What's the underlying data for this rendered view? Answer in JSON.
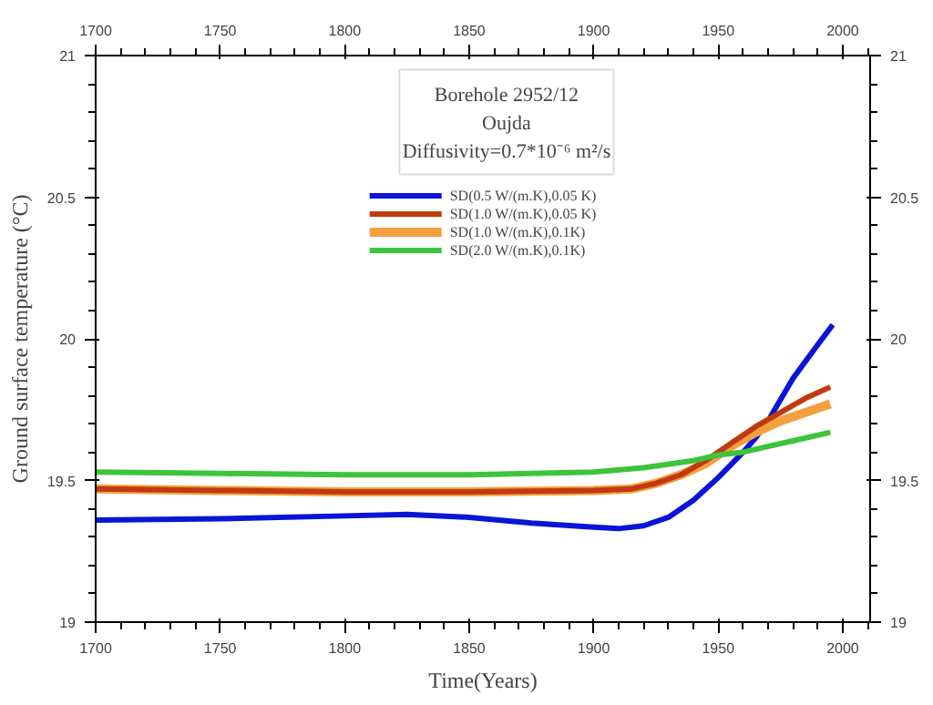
{
  "chart_data": {
    "type": "line",
    "xlabel": "Time(Years)",
    "ylabel": "Ground surface temperature (°C)",
    "annotations": [
      "Borehole 2952/12",
      "Oujda",
      "Diffusivity=0.7*10⁻⁶ m²/s"
    ],
    "xlim": [
      1700,
      2011
    ],
    "xticks": [
      1700,
      1750,
      1800,
      1850,
      1900,
      1950,
      2000
    ],
    "x2lim": [
      1700,
      2011
    ],
    "x2ticks": [
      1700,
      1750,
      1800,
      1850,
      1900,
      1950,
      2000
    ],
    "ylim": [
      19,
      21
    ],
    "yticks": [
      19,
      19.5,
      20,
      20.5,
      21
    ],
    "y2lim": [
      19,
      21
    ],
    "y2ticks": [
      19,
      19.5,
      20,
      20.5,
      21
    ],
    "grid": false,
    "legend": "top",
    "marker": "none",
    "line_style": "solid",
    "series": [
      {
        "name": "SD(0.5 W/(m.K),0.05 K)",
        "color": "#0a14d8",
        "x": [
          1700,
          1750,
          1800,
          1825,
          1850,
          1875,
          1900,
          1910,
          1920,
          1930,
          1940,
          1950,
          1960,
          1965,
          1970,
          1980,
          1990,
          1996
        ],
        "values": [
          19.36,
          19.365,
          19.375,
          19.38,
          19.37,
          19.35,
          19.335,
          19.33,
          19.34,
          19.37,
          19.43,
          19.51,
          19.6,
          19.65,
          19.71,
          19.86,
          19.98,
          20.05
        ]
      },
      {
        "name": "SD(1.0 W/(m.K),0.05 K)",
        "color": "#c03a10",
        "x": [
          1700,
          1750,
          1800,
          1850,
          1900,
          1915,
          1925,
          1935,
          1945,
          1955,
          1965,
          1975,
          1985,
          1995
        ],
        "values": [
          19.47,
          19.465,
          19.46,
          19.46,
          19.465,
          19.47,
          19.49,
          19.52,
          19.57,
          19.63,
          19.69,
          19.74,
          19.79,
          19.83
        ]
      },
      {
        "name": "SD(1.0 W/(m.K),0.1K)",
        "color": "#f5a040",
        "x": [
          1700,
          1750,
          1800,
          1850,
          1900,
          1915,
          1925,
          1935,
          1945,
          1955,
          1965,
          1975,
          1985,
          1995
        ],
        "values": [
          19.47,
          19.465,
          19.46,
          19.46,
          19.465,
          19.47,
          19.49,
          19.52,
          19.56,
          19.62,
          19.67,
          19.71,
          19.74,
          19.77
        ]
      },
      {
        "name": "SD(2.0 W/(m.K),0.1K)",
        "color": "#3cc43c",
        "x": [
          1700,
          1750,
          1800,
          1850,
          1900,
          1920,
          1940,
          1950,
          1960,
          1970,
          1980,
          1995
        ],
        "values": [
          19.53,
          19.525,
          19.52,
          19.52,
          19.53,
          19.545,
          19.57,
          19.59,
          19.6,
          19.62,
          19.64,
          19.67
        ]
      }
    ]
  }
}
